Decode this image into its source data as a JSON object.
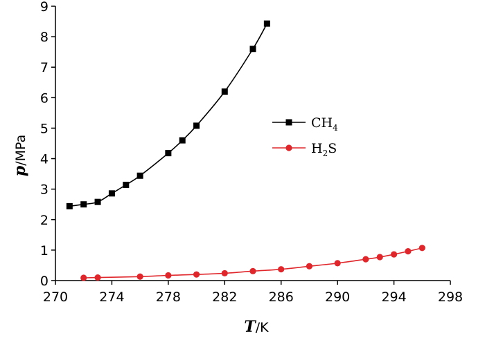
{
  "chart_data": {
    "type": "line",
    "title": "",
    "xlabel": {
      "var": "T",
      "unit": "/K"
    },
    "ylabel": {
      "var": "p",
      "unit": "/MPa"
    },
    "xlim": [
      270,
      298
    ],
    "ylim": [
      0,
      9
    ],
    "xticks": [
      270,
      274,
      278,
      282,
      286,
      290,
      294,
      298
    ],
    "yticks": [
      0,
      1,
      2,
      3,
      4,
      5,
      6,
      7,
      8,
      9
    ],
    "grid": false,
    "legend_position": "center-right",
    "series": [
      {
        "name": "CH4",
        "label_main": "CH",
        "label_sub": "4",
        "label_tail": "",
        "color": "#000000",
        "marker": "square",
        "points": [
          [
            271,
            2.44
          ],
          [
            272,
            2.5
          ],
          [
            273,
            2.58
          ],
          [
            274,
            2.86
          ],
          [
            275,
            3.14
          ],
          [
            276,
            3.44
          ],
          [
            278,
            4.18
          ],
          [
            279,
            4.6
          ],
          [
            280,
            5.08
          ],
          [
            282,
            6.2
          ],
          [
            284,
            7.6
          ],
          [
            285,
            8.43
          ]
        ]
      },
      {
        "name": "H2S",
        "label_main": "H",
        "label_sub": "2",
        "label_tail": "S",
        "color": "#e0262a",
        "marker": "circle",
        "points": [
          [
            272,
            0.09
          ],
          [
            273,
            0.1
          ],
          [
            276,
            0.13
          ],
          [
            278,
            0.17
          ],
          [
            280,
            0.2
          ],
          [
            282,
            0.24
          ],
          [
            284,
            0.31
          ],
          [
            286,
            0.37
          ],
          [
            288,
            0.47
          ],
          [
            290,
            0.57
          ],
          [
            292,
            0.7
          ],
          [
            293,
            0.77
          ],
          [
            294,
            0.86
          ],
          [
            295,
            0.96
          ],
          [
            296,
            1.07
          ]
        ]
      }
    ]
  }
}
